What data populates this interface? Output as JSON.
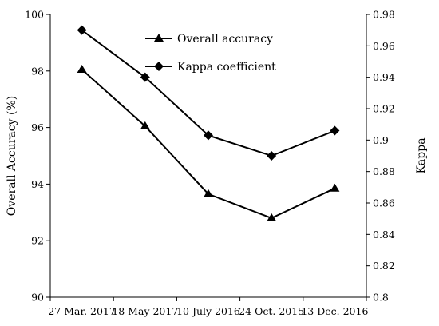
{
  "chart_data": {
    "type": "line",
    "categories": [
      "27 Mar. 2017",
      "18 May 2017",
      "10 July 2016",
      "24 Oct. 2015",
      "13 Dec. 2016"
    ],
    "ylabel": "Overall Accuracy (%)",
    "y2label": "Kappa",
    "ylim": [
      90,
      100
    ],
    "y2lim": [
      0.8,
      0.98
    ],
    "yticks": [
      "90",
      "92",
      "94",
      "96",
      "98",
      "100"
    ],
    "y2ticks": [
      "0.8",
      "0.82",
      "0.84",
      "0.86",
      "0.88",
      "0.9",
      "0.92",
      "0.94",
      "0.96",
      "0.98"
    ],
    "grid": false,
    "legend_position": "top-center",
    "series": [
      {
        "name": "Overall accuracy",
        "axis": "left",
        "marker": "triangle",
        "values": [
          98.05,
          96.05,
          93.65,
          92.8,
          93.85
        ]
      },
      {
        "name": "Kappa coefficient",
        "axis": "right",
        "marker": "diamond",
        "values": [
          0.97,
          0.94,
          0.903,
          0.89,
          0.906
        ]
      }
    ],
    "line_color": "#000000"
  }
}
